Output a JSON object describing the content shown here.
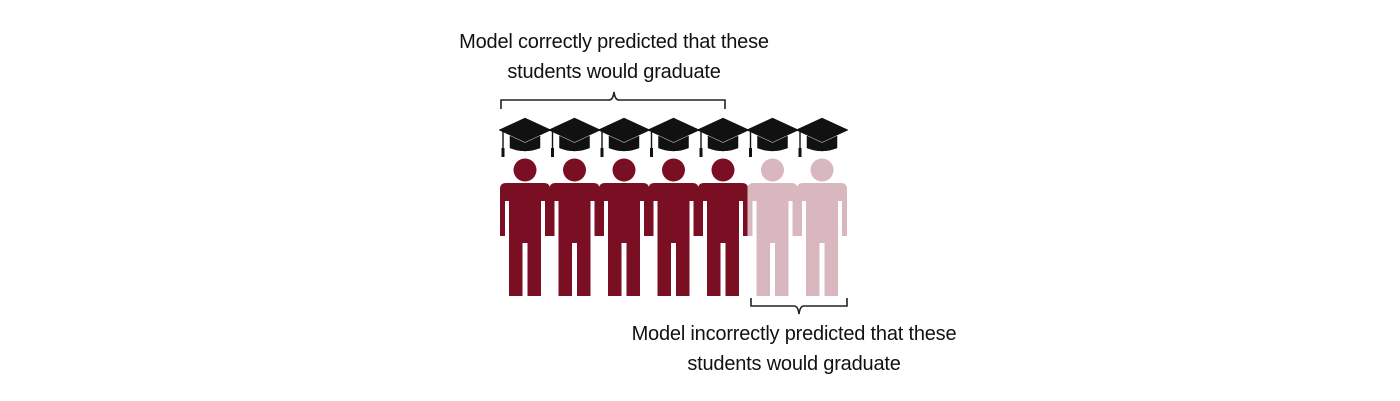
{
  "captions": {
    "correct": {
      "line1": "Model correctly predicted that these",
      "line2": "students would graduate"
    },
    "incorrect": {
      "line1": "Model incorrectly predicted that these",
      "line2": "students would graduate"
    }
  },
  "students": [
    {
      "id": 1,
      "prediction": "graduate",
      "outcome": "correct"
    },
    {
      "id": 2,
      "prediction": "graduate",
      "outcome": "correct"
    },
    {
      "id": 3,
      "prediction": "graduate",
      "outcome": "correct"
    },
    {
      "id": 4,
      "prediction": "graduate",
      "outcome": "correct"
    },
    {
      "id": 5,
      "prediction": "graduate",
      "outcome": "correct"
    },
    {
      "id": 6,
      "prediction": "graduate",
      "outcome": "incorrect"
    },
    {
      "id": 7,
      "prediction": "graduate",
      "outcome": "incorrect"
    }
  ],
  "colors": {
    "correct": "#7a0f24",
    "incorrect": "#d8b7bf",
    "cap": "#111111",
    "bracket": "#222222"
  }
}
